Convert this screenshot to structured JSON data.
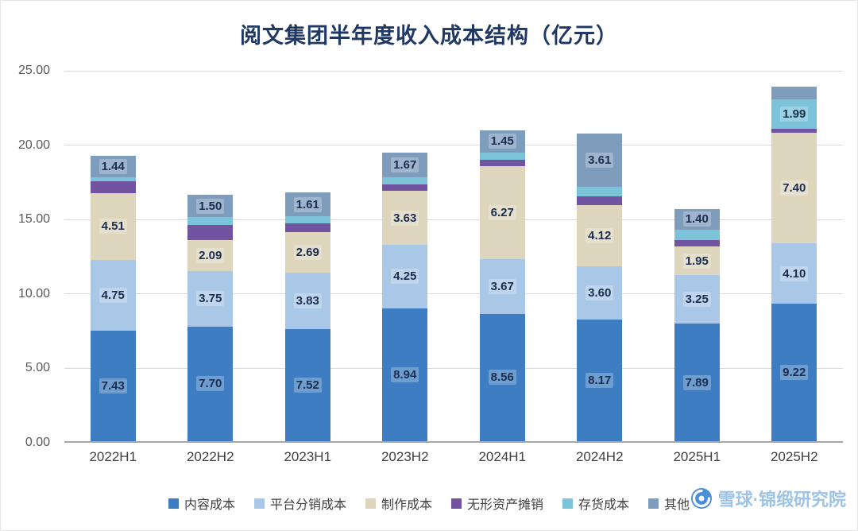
{
  "title": "阅文集团半年度收入成本结构（亿元）",
  "watermark": {
    "text": "雪球·锦缎研究院",
    "logo": "xueqiu-snowball-icon",
    "color": "#9dc3e6"
  },
  "chart_data": {
    "type": "bar",
    "stacked": true,
    "title": "阅文集团半年度收入成本结构（亿元）",
    "xlabel": "",
    "ylabel": "",
    "categories": [
      "2022H1",
      "2022H2",
      "2023H1",
      "2023H2",
      "2024H1",
      "2024H2",
      "2025H1",
      "2025H2"
    ],
    "series": [
      {
        "name": "内容成本",
        "color": "#3e7dc1",
        "values": [
          7.43,
          7.7,
          7.52,
          8.94,
          8.56,
          8.17,
          7.89,
          9.22
        ]
      },
      {
        "name": "平台分销成本",
        "color": "#a9c7e6",
        "values": [
          4.75,
          3.75,
          3.83,
          4.25,
          3.67,
          3.6,
          3.25,
          4.1
        ]
      },
      {
        "name": "制作成本",
        "color": "#ddd6bc",
        "values": [
          4.51,
          2.09,
          2.69,
          3.63,
          6.27,
          4.12,
          1.95,
          7.4
        ]
      },
      {
        "name": "无形资产摊销",
        "color": "#7253a2",
        "values": [
          0.8,
          1.0,
          0.62,
          0.45,
          0.42,
          0.55,
          0.42,
          0.25
        ]
      },
      {
        "name": "存货成本",
        "color": "#7ac3d9",
        "values": [
          0.25,
          0.5,
          0.45,
          0.45,
          0.5,
          0.65,
          0.7,
          1.99
        ]
      },
      {
        "name": "其他",
        "color": "#7e9cbc",
        "values": [
          1.44,
          1.5,
          1.61,
          1.67,
          1.45,
          3.61,
          1.4,
          0.85
        ]
      }
    ],
    "ylim": [
      0,
      25
    ],
    "yticks": [
      0,
      5,
      10,
      15,
      20,
      25
    ],
    "ytick_labels": [
      "0.00",
      "5.00",
      "10.00",
      "15.00",
      "20.00",
      "25.00"
    ],
    "grid": true,
    "legend_position": "bottom",
    "label_min": 1.3,
    "label_note": "segments smaller than label_min are unlabeled in the chart; their values are estimated from bar heights"
  }
}
